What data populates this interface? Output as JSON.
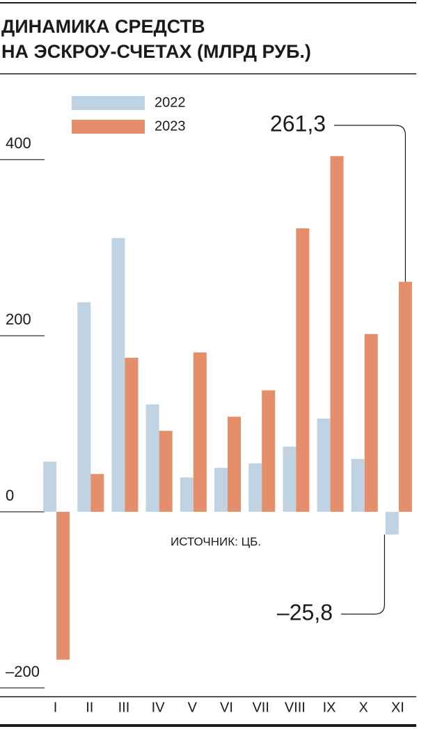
{
  "chart_data": {
    "type": "bar",
    "title": [
      "ДИНАМИКА СРЕДСТВ",
      "НА ЭСКРОУ-СЧЕТАХ (МЛРД РУБ.)"
    ],
    "source": "ИСТОЧНИК: ЦБ.",
    "categories": [
      "I",
      "II",
      "III",
      "IV",
      "V",
      "VI",
      "VII",
      "VIII",
      "IX",
      "X",
      "XI"
    ],
    "series": [
      {
        "name": "2022",
        "color": "#c0d3e3",
        "values": [
          57,
          238,
          311,
          122,
          39,
          50,
          55,
          74,
          106,
          60,
          -25.8
        ],
        "value_labels": [
          null,
          null,
          null,
          null,
          null,
          null,
          null,
          null,
          null,
          null,
          "–25,8"
        ]
      },
      {
        "name": "2023",
        "color": "#e58e6b",
        "values": [
          -168,
          43,
          175,
          92,
          181,
          108,
          138,
          322,
          404,
          202,
          261.3
        ],
        "value_labels": [
          null,
          null,
          null,
          null,
          null,
          null,
          null,
          null,
          null,
          null,
          "261,3"
        ]
      }
    ],
    "ylim": [
      -210,
      420
    ],
    "yticks": [
      {
        "value": -200,
        "label": "–200"
      },
      0,
      200,
      400
    ]
  }
}
